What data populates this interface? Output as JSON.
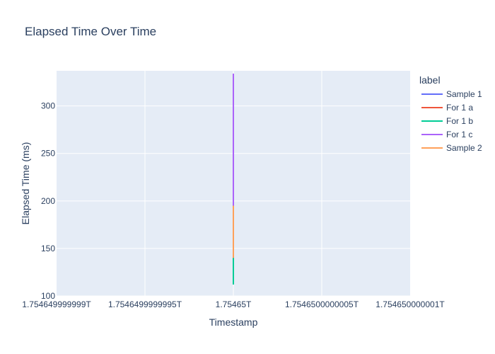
{
  "chart_data": {
    "type": "line",
    "title": "Elapsed Time Over Time",
    "xlabel": "Timestamp",
    "ylabel": "Elapsed Time (ms)",
    "x_ticks": [
      "1.754649999999T",
      "1.7546499999995T",
      "1.75465T",
      "1.7546500000005T",
      "1.754650000001T"
    ],
    "y_ticks": [
      100,
      150,
      200,
      250,
      300
    ],
    "ylim": [
      100,
      337
    ],
    "legend_title": "label",
    "legend_position": "right",
    "grid": true,
    "x_value": "1.75465T",
    "series": [
      {
        "name": "Sample 1",
        "color": "#636efa",
        "values": [
          135,
          292
        ]
      },
      {
        "name": "For 1 a",
        "color": "#ef553b",
        "values": [
          160,
          190
        ]
      },
      {
        "name": "For 1 b",
        "color": "#00cc96",
        "values": [
          112,
          224
        ]
      },
      {
        "name": "For 1 c",
        "color": "#ab63fa",
        "values": [
          195,
          334
        ]
      },
      {
        "name": "Sample 2",
        "color": "#ffa15a",
        "values": [
          140,
          195
        ]
      }
    ]
  }
}
